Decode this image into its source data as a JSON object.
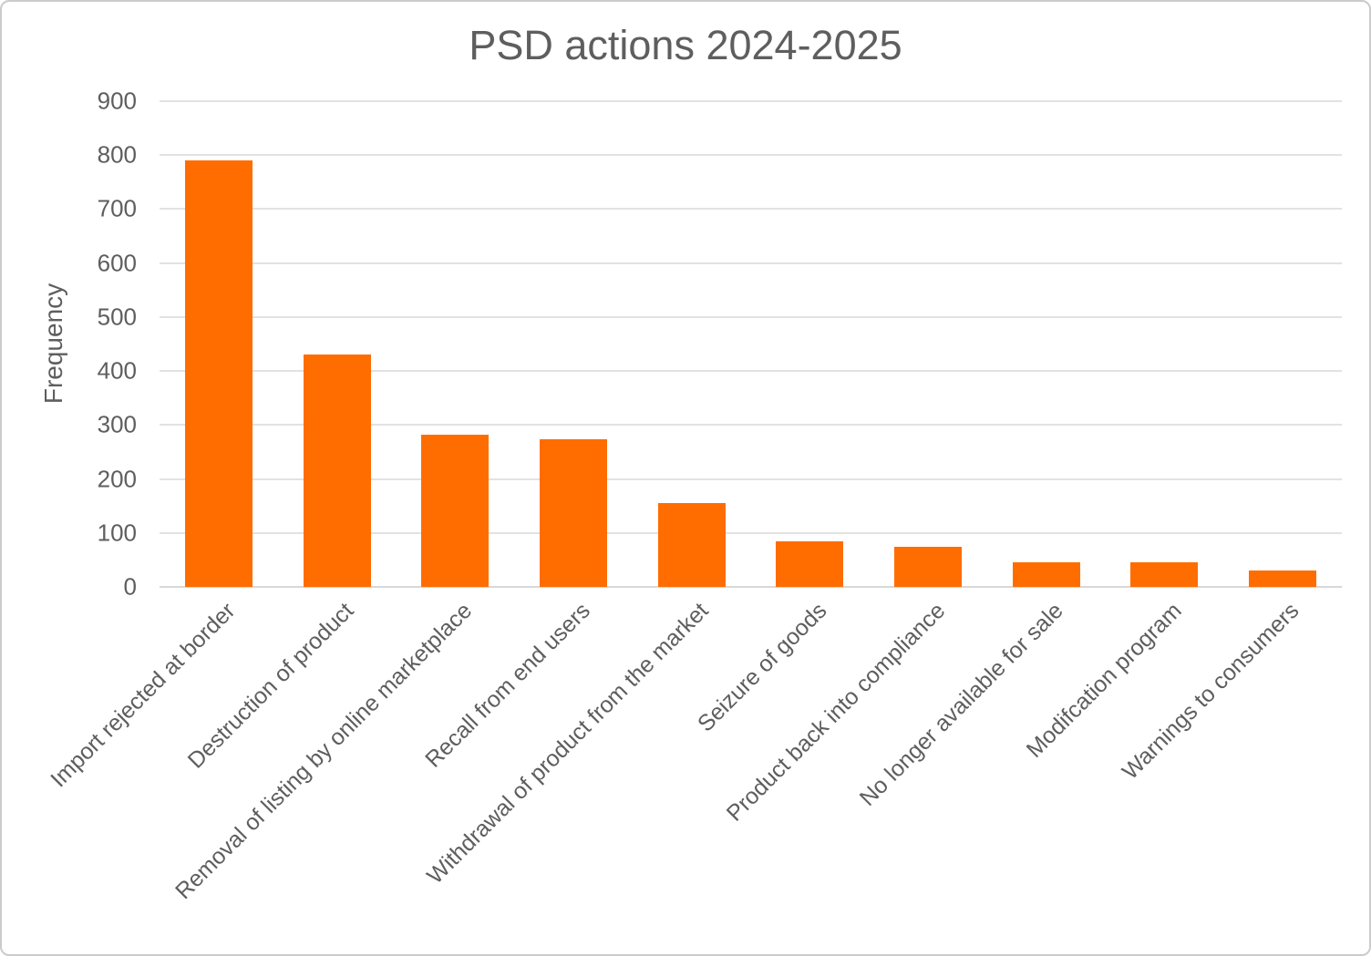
{
  "chart_data": {
    "type": "bar",
    "title": "PSD actions 2024-2025",
    "xlabel": "",
    "ylabel": "Frequency",
    "categories": [
      "Import rejected at border",
      "Destruction of product",
      "Removal of listing by online marketplace",
      "Recall from end users",
      "Withdrawal of product from the market",
      "Seizure of goods",
      "Product back into compliance",
      "No longer available for sale",
      "Modifcation program",
      "Warnings to consumers"
    ],
    "values": [
      790,
      430,
      282,
      273,
      155,
      85,
      75,
      46,
      45,
      30
    ],
    "ylim": [
      0,
      900
    ],
    "ytick_step": 100,
    "yticks": [
      "0",
      "100",
      "200",
      "300",
      "400",
      "500",
      "600",
      "700",
      "800",
      "900"
    ],
    "grid": "horizontal",
    "legend": "none",
    "bar_color": "#FF6D01",
    "gridline_color": "#E2E2E2",
    "axis_text_color": "#5E5E5E",
    "title_color": "#5E5E5E"
  }
}
